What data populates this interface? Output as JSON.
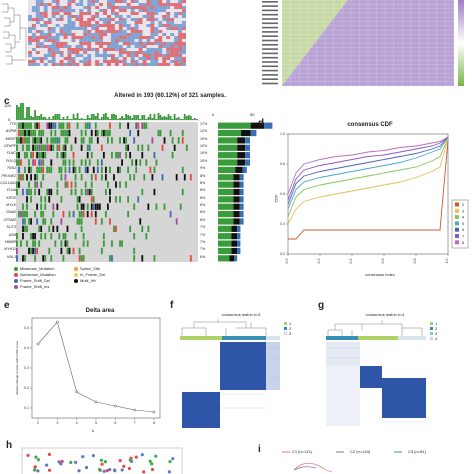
{
  "panels": {
    "c": {
      "letter": "c",
      "title": "Altered in 193 (60.12%) of 321 samples.",
      "top_axis_max": "100",
      "top_axis_zero": "0",
      "side_axis": [
        "0",
        "50"
      ],
      "genes": [
        "TTK",
        "ASPM",
        "MKI67",
        "CENPF",
        "FLNC",
        "POLQ",
        "TNS1",
        "PRUNE2",
        "COL14A1",
        "FLNA",
        "KIF20",
        "MYLK",
        "DNA2",
        "CPXM2",
        "SLIT3",
        "A2M",
        "HMMR",
        "MYH11",
        "KNL1"
      ],
      "percents": [
        "17%",
        "12%",
        "10%",
        "10%",
        "10%",
        "10%",
        "9%",
        "8%",
        "8%",
        "8%",
        "8%",
        "8%",
        "8%",
        "8%",
        "7%",
        "7%",
        "7%",
        "7%",
        "6%"
      ],
      "legend": [
        {
          "label": "Missense_Mutation",
          "color": "#3a9b3a"
        },
        {
          "label": "Splice_Site",
          "color": "#f0a23c"
        },
        {
          "label": "Nonsense_Mutation",
          "color": "#e8473a"
        },
        {
          "label": "In_Frame_Del",
          "color": "#e7d84a"
        },
        {
          "label": "Frame_Shift_Del",
          "color": "#3a6fb5"
        },
        {
          "label": "Multi_Hit",
          "color": "#111111"
        },
        {
          "label": "Frame_Shift_Ins",
          "color": "#a64aa8"
        }
      ]
    },
    "d": {
      "letter": "d",
      "title": "consensus CDF",
      "xlabel": "consensus index",
      "ylabel": "CDF",
      "yticks": [
        "0.2",
        "0.4",
        "0.6",
        "0.8",
        "1.0"
      ],
      "xticks": [
        "0.0",
        "0.2",
        "0.4",
        "0.6",
        "0.8",
        "1.0"
      ],
      "legend": [
        {
          "label": "2",
          "color": "#d2572a"
        },
        {
          "label": "3",
          "color": "#e5c05a"
        },
        {
          "label": "4",
          "color": "#8cc55c"
        },
        {
          "label": "5",
          "color": "#4aa7c4"
        },
        {
          "label": "6",
          "color": "#4c62b6"
        },
        {
          "label": "7",
          "color": "#8a5ac0"
        },
        {
          "label": "8",
          "color": "#c06bc0"
        }
      ]
    },
    "e": {
      "letter": "e",
      "title": "Delta area",
      "xlabel": "k",
      "ylabel": "relative change in area under CDF curve",
      "xticks": [
        "2",
        "3",
        "4",
        "5",
        "6",
        "7",
        "8"
      ],
      "yticks": [
        "0.1",
        "0.2",
        "0.3",
        "0.4",
        "0.5"
      ]
    },
    "f": {
      "letter": "f",
      "title": "consensus matrix k=3",
      "legend": [
        "1",
        "2",
        "3"
      ]
    },
    "g": {
      "letter": "g",
      "title": "consensus matrix k=4",
      "legend": [
        "1",
        "2",
        "3",
        "4"
      ]
    },
    "h": {
      "letter": "h"
    },
    "i": {
      "letter": "i",
      "legend": [
        "C1 (n=113)",
        "C2 (n=134)",
        "C3 (n=81)"
      ]
    }
  },
  "chart_data": [
    {
      "type": "line",
      "title": "consensus CDF",
      "xlabel": "consensus index",
      "ylabel": "CDF",
      "xlim": [
        0,
        1
      ],
      "ylim": [
        0.2,
        1.0
      ],
      "x": [
        0,
        0.05,
        0.1,
        0.2,
        0.3,
        0.4,
        0.5,
        0.6,
        0.7,
        0.8,
        0.9,
        0.95,
        1.0
      ],
      "series": [
        {
          "name": "2",
          "values": [
            0.3,
            0.3,
            0.36,
            0.36,
            0.36,
            0.36,
            0.36,
            0.36,
            0.36,
            0.36,
            0.36,
            0.36,
            0.96
          ]
        },
        {
          "name": "3",
          "values": [
            0.4,
            0.5,
            0.55,
            0.58,
            0.6,
            0.62,
            0.64,
            0.66,
            0.68,
            0.71,
            0.75,
            0.78,
            0.97
          ]
        },
        {
          "name": "4",
          "values": [
            0.45,
            0.58,
            0.63,
            0.66,
            0.68,
            0.7,
            0.72,
            0.74,
            0.76,
            0.78,
            0.82,
            0.85,
            0.97
          ]
        },
        {
          "name": "5",
          "values": [
            0.5,
            0.63,
            0.68,
            0.71,
            0.73,
            0.75,
            0.77,
            0.79,
            0.81,
            0.84,
            0.88,
            0.9,
            0.98
          ]
        },
        {
          "name": "6",
          "values": [
            0.53,
            0.67,
            0.72,
            0.75,
            0.77,
            0.79,
            0.81,
            0.83,
            0.85,
            0.87,
            0.9,
            0.92,
            0.98
          ]
        },
        {
          "name": "7",
          "values": [
            0.56,
            0.7,
            0.76,
            0.79,
            0.81,
            0.83,
            0.85,
            0.86,
            0.88,
            0.9,
            0.92,
            0.94,
            0.98
          ]
        },
        {
          "name": "8",
          "values": [
            0.6,
            0.74,
            0.8,
            0.83,
            0.85,
            0.86,
            0.88,
            0.89,
            0.91,
            0.92,
            0.94,
            0.95,
            0.98
          ]
        }
      ]
    },
    {
      "type": "line",
      "title": "Delta area",
      "xlabel": "k",
      "ylabel": "relative change in area under CDF curve",
      "x": [
        2,
        3,
        4,
        5,
        6,
        7,
        8
      ],
      "xlim": [
        2,
        8
      ],
      "ylim": [
        0.05,
        0.55
      ],
      "series": [
        {
          "values": [
            0.42,
            0.53,
            0.18,
            0.13,
            0.11,
            0.09,
            0.08
          ]
        }
      ]
    }
  ]
}
